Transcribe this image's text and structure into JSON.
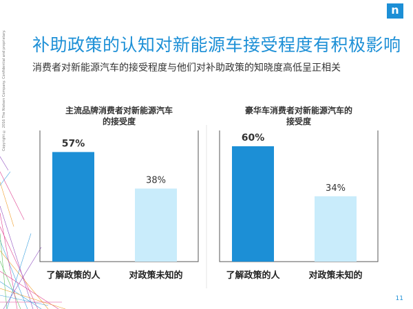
{
  "slide": {
    "title": "补助政策的认知对新能源车接受程度有积极影响",
    "subtitle": "消费者对新能源汽车的接受程度与他们对补助政策的知晓度高低呈正相关",
    "side_note": "Copyright © 2016 The Nielsen Company. Confidential and proprietary.",
    "logo_text": "n",
    "page_number": "11"
  },
  "colors": {
    "accent": "#1c8fd6",
    "bar_aware": "#1c8fd6",
    "bar_unaware": "#c9ecfb"
  },
  "chart_data": [
    {
      "type": "bar",
      "title_lines": [
        "主流品牌消费者对新能源汽车",
        "的接受度"
      ],
      "categories": [
        "了解政策的人",
        "对政策未知的"
      ],
      "values": [
        57,
        38
      ],
      "value_labels": [
        "57%",
        "38%"
      ],
      "unit": "%",
      "ylim": [
        0,
        100
      ]
    },
    {
      "type": "bar",
      "title_lines": [
        "豪华车消费者对新能源汽车的",
        "接受度"
      ],
      "categories": [
        "了解政策的人",
        "对政策未知的"
      ],
      "values": [
        60,
        34
      ],
      "value_labels": [
        "60%",
        "34%"
      ],
      "unit": "%",
      "ylim": [
        0,
        100
      ]
    }
  ]
}
